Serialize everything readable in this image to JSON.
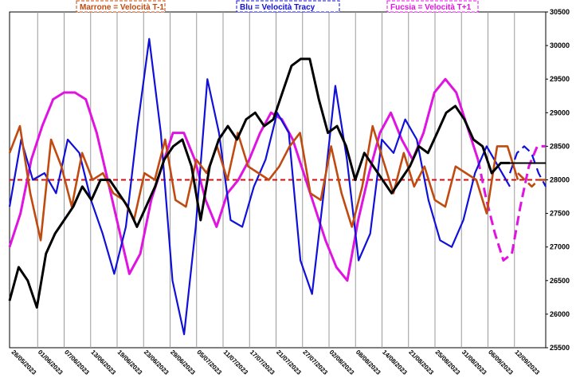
{
  "chart_data": {
    "type": "line",
    "title": "",
    "xlabel": "",
    "ylabel": "",
    "ylim": [
      25500,
      30500
    ],
    "y_ticks": [
      "25500",
      "26000",
      "26500",
      "27000",
      "27500",
      "28000",
      "28500",
      "29000",
      "29500",
      "30000",
      "30500"
    ],
    "x_tick_labels": [
      "26/05/2023",
      "01/06/2023",
      "07/06/2023",
      "13/06/2023",
      "19/06/2023",
      "23/06/2023",
      "29/06/2023",
      "05/07/2023",
      "11/07/2023",
      "17/07/2023",
      "21/07/2023",
      "27/07/2023",
      "02/08/2023",
      "08/08/2023",
      "14/08/2023",
      "21/08/2023",
      "25/08/2023",
      "31/08/2023",
      "06/09/2023",
      "12/09/2023"
    ],
    "grid": "vertical",
    "legend_placement": "top",
    "legend": [
      {
        "label": "Marrone = Velocità T-1",
        "color": "#c04a10"
      },
      {
        "label": "Blu = Velocità Tracy",
        "color": "#1010d8"
      },
      {
        "label": "Fucsia = Velocità T+1",
        "color": "#e014e0"
      }
    ],
    "reference_line": {
      "value": 28000,
      "color": "#d01010",
      "style": "dashed"
    },
    "last_level": {
      "value": 28250,
      "color": "#000000"
    },
    "series": [
      {
        "color": "#000000",
        "style": "solid",
        "values": [
          26200,
          26700,
          26500,
          26100,
          26900,
          27200,
          27400,
          27600,
          27900,
          27700,
          28000,
          28000,
          27800,
          27600,
          27300,
          27600,
          27900,
          28300,
          28500,
          28600,
          28200,
          27400,
          28200,
          28600,
          28800,
          28600,
          28900,
          29000,
          28800,
          28900,
          29300,
          29700,
          29800,
          29800,
          29200,
          28700,
          28800,
          28500,
          28000,
          28400,
          28200,
          28000,
          27800,
          28000,
          28200,
          28500,
          28400,
          28700,
          29000,
          29100,
          28900,
          28600,
          28500,
          28100,
          28250,
          28250
        ]
      },
      {
        "color": "#1010d8",
        "style": "solid",
        "values": [
          27600,
          28600,
          28000,
          28100,
          27800,
          28600,
          28400,
          27700,
          27200,
          26600,
          27300,
          28800,
          30100,
          28700,
          26500,
          25700,
          27300,
          29500,
          28700,
          27400,
          27300,
          27900,
          28300,
          29000,
          28700,
          26800,
          26300,
          27800,
          29400,
          28300,
          26800,
          27200,
          28600,
          28400,
          28900,
          28600,
          27700,
          27100,
          27000,
          27400,
          28100,
          28500,
          28200,
          27900
        ]
      },
      {
        "color": "#e014e0",
        "style": "solid",
        "values": [
          27000,
          27500,
          28300,
          28800,
          29200,
          29300,
          29300,
          29200,
          28700,
          28000,
          27300,
          26600,
          26900,
          27700,
          28200,
          28700,
          28700,
          28300,
          27700,
          27300,
          27800,
          28000,
          28300,
          28700,
          29000,
          28900,
          28600,
          28100,
          27600,
          27100,
          26700,
          26500,
          27400,
          28100,
          28700,
          29000,
          28600,
          28300,
          28700,
          29300,
          29500,
          29300,
          28800,
          28300
        ]
      },
      {
        "color": "#e014e0",
        "style": "dashed",
        "values": [
          28300,
          27700,
          27200,
          26800,
          26900,
          27600,
          28200,
          28500,
          28500
        ]
      },
      {
        "color": "#c04a10",
        "style": "solid",
        "values": [
          28400,
          28800,
          27800,
          27100,
          28600,
          28200,
          27600,
          28400,
          28000,
          28100,
          27800,
          27700,
          27400,
          28100,
          28000,
          28600,
          27700,
          27600,
          28300,
          28100,
          28500,
          28000,
          28700,
          28200,
          28100,
          28000,
          28200,
          28500,
          28700,
          27800,
          27700,
          28500,
          27800,
          27300,
          27900,
          28800,
          28300,
          27800,
          28400,
          27900,
          28200,
          27700,
          27600,
          28200,
          28100,
          28000,
          27500,
          28500,
          28500,
          28000
        ]
      },
      {
        "color": "#c04a10",
        "style": "dashed",
        "values": [
          28100,
          28000,
          27900,
          28000,
          28000
        ]
      },
      {
        "color": "#1010d8",
        "style": "dashed",
        "values": [
          28100,
          28400,
          28500,
          28400,
          28100,
          27900
        ]
      }
    ]
  }
}
